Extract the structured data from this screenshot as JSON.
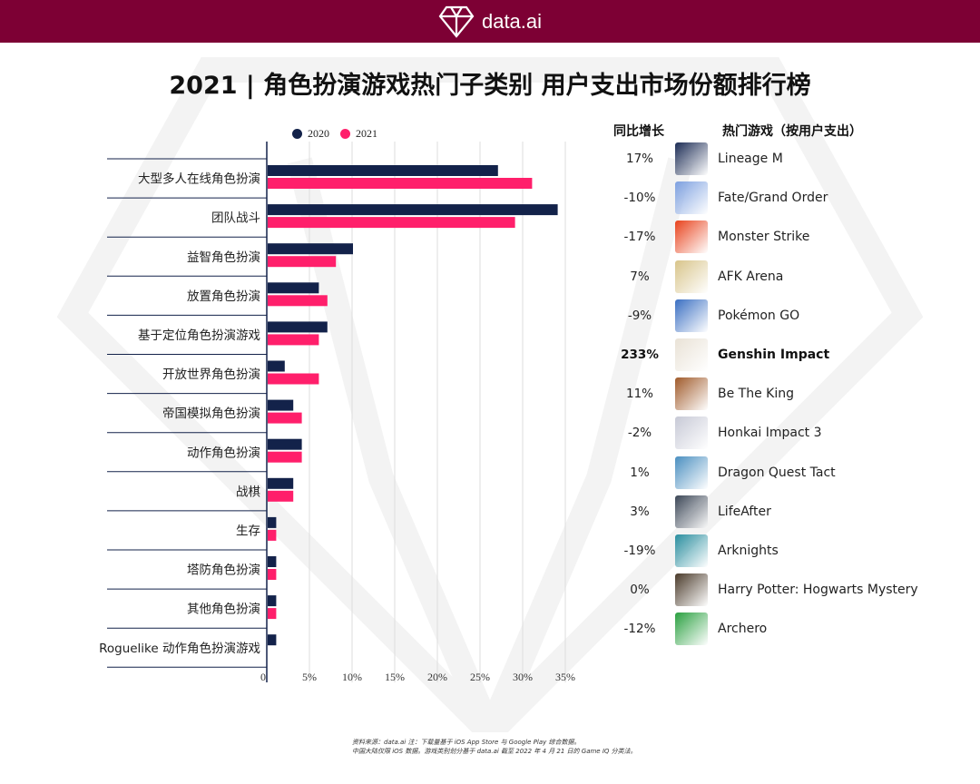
{
  "header": {
    "brand": "data.ai",
    "title": "2021 | 角色扮演游戏热门子类别 用户支出市场份额排行榜"
  },
  "chart_data": {
    "type": "bar",
    "orientation": "horizontal",
    "categories": [
      "大型多人在线角色扮演",
      "团队战斗",
      "益智角色扮演",
      "放置角色扮演",
      "基于定位角色扮演游戏",
      "开放世界角色扮演",
      "帝国模拟角色扮演",
      "动作角色扮演",
      "战棋",
      "生存",
      "塔防角色扮演",
      "其他角色扮演",
      "Roguelike 动作角色扮演游戏"
    ],
    "series": [
      {
        "name": "2020",
        "color": "#13224a",
        "values": [
          27,
          34,
          10,
          6,
          7,
          2,
          3,
          4,
          3,
          1,
          1,
          1,
          1
        ]
      },
      {
        "name": "2021",
        "color": "#ff1f6b",
        "values": [
          31,
          29,
          8,
          7,
          6,
          6,
          4,
          4,
          3,
          1,
          1,
          1,
          null
        ]
      }
    ],
    "xlim": [
      0,
      37
    ],
    "xticks": [
      "0",
      "5%",
      "10%",
      "15%",
      "20%",
      "25%",
      "30%",
      "35%"
    ],
    "grid": true,
    "legend": "top"
  },
  "table": {
    "col_growth": "同比增长",
    "col_games": "热门游戏（按用户支出）",
    "rows": [
      {
        "growth": "17%",
        "game": "Lineage M",
        "color": "#1c2c55"
      },
      {
        "growth": "-10%",
        "game": "Fate/Grand Order",
        "color": "#7da0e0"
      },
      {
        "growth": "-17%",
        "game": "Monster Strike",
        "color": "#e8421c"
      },
      {
        "growth": "7%",
        "game": "AFK Arena",
        "color": "#d8c48a"
      },
      {
        "growth": "-9%",
        "game": "Pokémon GO",
        "color": "#3a6fc2"
      },
      {
        "growth": "233%",
        "game": "Genshin Impact",
        "color": "#e9e2d6",
        "bold": true
      },
      {
        "growth": "11%",
        "game": "Be The King",
        "color": "#a05a2a"
      },
      {
        "growth": "-2%",
        "game": "Honkai Impact 3",
        "color": "#c7c9d6"
      },
      {
        "growth": "1%",
        "game": "Dragon Quest Tact",
        "color": "#4a8fc0"
      },
      {
        "growth": "3%",
        "game": "LifeAfter",
        "color": "#3b4656"
      },
      {
        "growth": "-19%",
        "game": "Arknights",
        "color": "#2a8fa0"
      },
      {
        "growth": "0%",
        "game": "Harry Potter: Hogwarts Mystery",
        "color": "#4a3a2a"
      },
      {
        "growth": "-12%",
        "game": "Archero",
        "color": "#2aa040"
      }
    ]
  },
  "footer": {
    "line1": "资料来源：data.ai 注：下载量基于 iOS App Store 与 Google Play 综合数据。",
    "line2": "中国大陆仅限 iOS 数据。游戏类别划分基于 data.ai 截至 2022 年 4 月 21 日的 Game IQ 分类法。"
  }
}
